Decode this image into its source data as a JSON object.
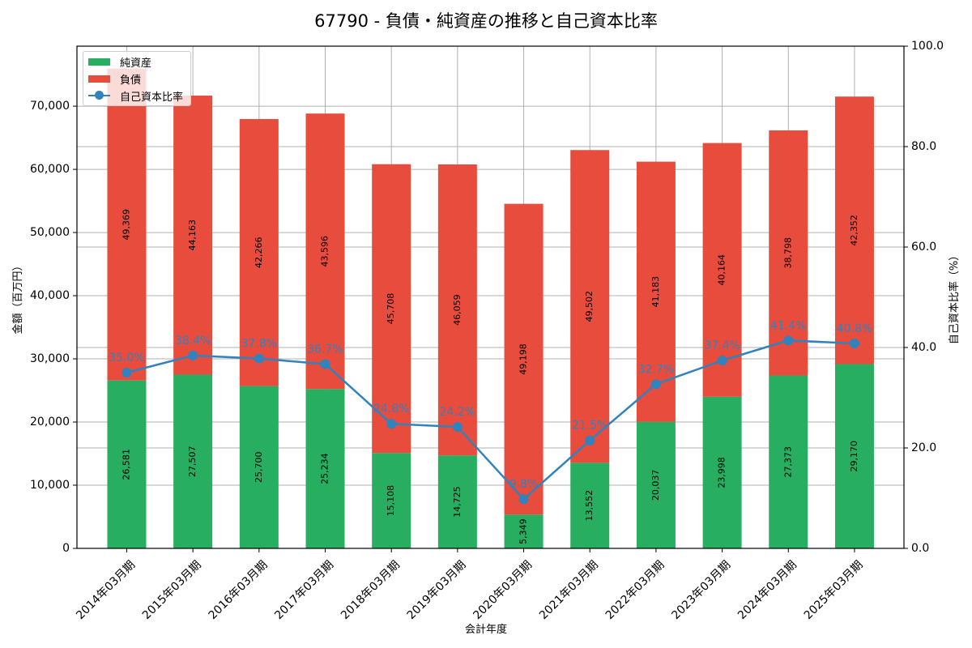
{
  "title": "67790 - 負債・純資産の推移と自己資本比率",
  "legend": {
    "net_assets": "純資産",
    "liabilities": "負債",
    "equity_ratio": "自己資本比率"
  },
  "axes": {
    "xlabel": "会計年度",
    "ylabel_left": "金額（百万円）",
    "ylabel_right": "自己資本比率（%）",
    "left_ticks": [
      "0",
      "10,000",
      "20,000",
      "30,000",
      "40,000",
      "50,000",
      "60,000",
      "70,000"
    ],
    "right_ticks": [
      "0.0",
      "20.0",
      "40.0",
      "60.0",
      "80.0",
      "100.0"
    ]
  },
  "colors": {
    "net_assets": "#27ae60",
    "liabilities": "#e74c3c",
    "equity_ratio": "#3182bd"
  },
  "chart_data": {
    "type": "bar",
    "stacked": true,
    "title": "67790 - 負債・純資産の推移と自己資本比率",
    "xlabel": "会計年度",
    "ylabel": "金額（百万円）",
    "ylabel_secondary": "自己資本比率（%）",
    "ylim": [
      0,
      79500
    ],
    "ylim_secondary": [
      0,
      100
    ],
    "grid": true,
    "legend_position": "upper left",
    "categories": [
      "2014年03月期",
      "2015年03月期",
      "2016年03月期",
      "2017年03月期",
      "2018年03月期",
      "2019年03月期",
      "2020年03月期",
      "2021年03月期",
      "2022年03月期",
      "2023年03月期",
      "2024年03月期",
      "2025年03月期"
    ],
    "series": [
      {
        "name": "純資産",
        "type": "bar",
        "axis": "left",
        "values": [
          26581,
          27507,
          25700,
          25234,
          15108,
          14725,
          5349,
          13552,
          20037,
          23998,
          27373,
          29170
        ]
      },
      {
        "name": "負債",
        "type": "bar",
        "axis": "left",
        "values": [
          49369,
          44163,
          42266,
          43596,
          45708,
          46059,
          49198,
          49502,
          41183,
          40164,
          38798,
          42352
        ]
      },
      {
        "name": "自己資本比率",
        "type": "line",
        "axis": "right",
        "values": [
          35.0,
          38.4,
          37.8,
          36.7,
          24.8,
          24.2,
          9.8,
          21.5,
          32.7,
          37.4,
          41.4,
          40.8
        ]
      }
    ],
    "net_assets_labels": [
      "26,581",
      "27,507",
      "25,700",
      "25,234",
      "15,108",
      "14,725",
      "5,349",
      "13,552",
      "20,037",
      "23,998",
      "27,373",
      "29,170"
    ],
    "liabilities_labels": [
      "49,369",
      "44,163",
      "42,266",
      "43,596",
      "45,708",
      "46,059",
      "49,198",
      "49,502",
      "41,183",
      "40,164",
      "38,798",
      "42,352"
    ],
    "ratio_labels": [
      "35.0%",
      "38.4%",
      "37.8%",
      "36.7%",
      "24.8%",
      "24.2%",
      "9.8%",
      "21.5%",
      "32.7%",
      "37.4%",
      "41.4%",
      "40.8%"
    ]
  }
}
